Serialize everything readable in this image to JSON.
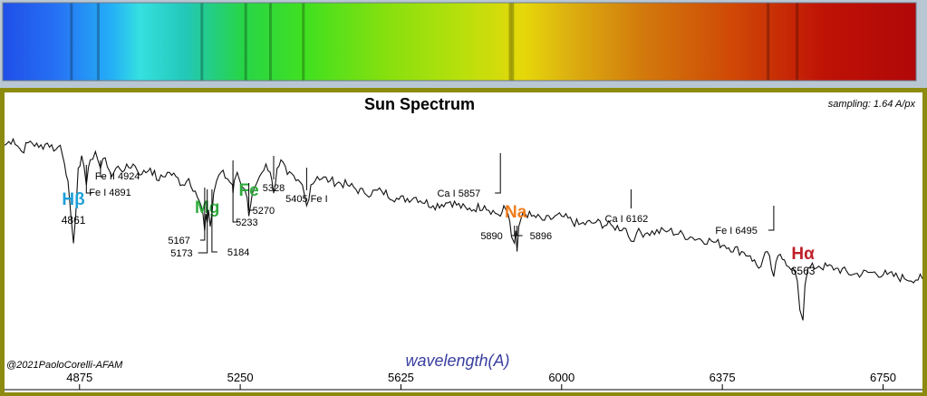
{
  "chart_data": {
    "type": "line",
    "title": "Sun Spectrum",
    "sampling_note": "sampling: 1.64 A/px",
    "xlabel": "wavelength(A)",
    "ylabel": "",
    "credit": "@2021PaoloCorelli-AFAM",
    "xlim": [
      4700,
      6842
    ],
    "ylim": [
      0,
      1
    ],
    "grid": false,
    "xticks": [
      4875,
      5250,
      5625,
      6000,
      6375,
      6750
    ],
    "xtick_labels": [
      "4875",
      "5250",
      "5625",
      "6000",
      "6375",
      "6750"
    ],
    "colors": {
      "h_lines": "#c0202a",
      "hbeta_label": "#1ea0d8",
      "metal_label": "#2eaa3c",
      "na_label": "#f07d1e",
      "axis_label": "#3a3fa0",
      "line": "#111111"
    },
    "series": [
      {
        "x": [
          4700,
          4720,
          4740,
          4760,
          4780,
          4800,
          4820,
          4830,
          4840,
          4848,
          4855,
          4861,
          4866,
          4872,
          4880,
          4891,
          4900,
          4912,
          4924,
          4935,
          4950,
          4965,
          4980,
          5000,
          5020,
          5040,
          5060,
          5080,
          5100,
          5115,
          5130,
          5145,
          5155,
          5163,
          5167,
          5170,
          5173,
          5176,
          5180,
          5184,
          5188,
          5195,
          5205,
          5220,
          5232,
          5233,
          5236,
          5243,
          5252,
          5260,
          5266,
          5270,
          5274,
          5282,
          5295,
          5310,
          5320,
          5328,
          5336,
          5345,
          5360,
          5380,
          5395,
          5405,
          5415,
          5430,
          5460,
          5500,
          5540,
          5580,
          5620,
          5660,
          5700,
          5740,
          5780,
          5820,
          5850,
          5857,
          5865,
          5875,
          5883,
          5890,
          5893,
          5896,
          5900,
          5910,
          5930,
          5960,
          6000,
          6040,
          6080,
          6120,
          6150,
          6162,
          6175,
          6200,
          6250,
          6300,
          6350,
          6380,
          6420,
          6440,
          6460,
          6480,
          6495,
          6505,
          6520,
          6540,
          6550,
          6556,
          6563,
          6568,
          6575,
          6600,
          6640,
          6680,
          6720,
          6760,
          6800,
          6842
        ],
        "y": [
          0.89,
          0.92,
          0.86,
          0.91,
          0.88,
          0.9,
          0.87,
          0.89,
          0.8,
          0.72,
          0.55,
          0.42,
          0.55,
          0.78,
          0.84,
          0.7,
          0.82,
          0.86,
          0.78,
          0.83,
          0.74,
          0.79,
          0.77,
          0.8,
          0.75,
          0.78,
          0.72,
          0.76,
          0.74,
          0.7,
          0.73,
          0.67,
          0.62,
          0.56,
          0.48,
          0.56,
          0.52,
          0.58,
          0.5,
          0.56,
          0.66,
          0.72,
          0.76,
          0.73,
          0.7,
          0.66,
          0.72,
          0.76,
          0.7,
          0.68,
          0.64,
          0.55,
          0.6,
          0.68,
          0.74,
          0.8,
          0.76,
          0.66,
          0.78,
          0.82,
          0.75,
          0.72,
          0.7,
          0.6,
          0.7,
          0.74,
          0.72,
          0.7,
          0.66,
          0.67,
          0.63,
          0.64,
          0.6,
          0.62,
          0.58,
          0.6,
          0.56,
          0.55,
          0.6,
          0.56,
          0.45,
          0.42,
          0.48,
          0.38,
          0.5,
          0.57,
          0.55,
          0.53,
          0.55,
          0.51,
          0.52,
          0.5,
          0.49,
          0.43,
          0.47,
          0.47,
          0.48,
          0.45,
          0.43,
          0.41,
          0.38,
          0.36,
          0.3,
          0.38,
          0.26,
          0.36,
          0.34,
          0.3,
          0.24,
          0.1,
          0.05,
          0.22,
          0.3,
          0.31,
          0.3,
          0.27,
          0.28,
          0.27,
          0.25,
          0.25
        ]
      }
    ],
    "annotations": [
      {
        "text": "Hβ",
        "role": "symbol",
        "x": 4861,
        "color_key": "hbeta_label"
      },
      {
        "text": "4861",
        "role": "value",
        "x": 4861
      },
      {
        "text": "Fe I 4891",
        "role": "line",
        "x": 4891
      },
      {
        "text": "Fe II 4924",
        "role": "line",
        "x": 4924
      },
      {
        "text": "Mg",
        "role": "symbol",
        "x": 5173,
        "color_key": "metal_label"
      },
      {
        "text": "5167",
        "role": "line",
        "x": 5167
      },
      {
        "text": "5173",
        "role": "line",
        "x": 5173
      },
      {
        "text": "5184",
        "role": "line",
        "x": 5184
      },
      {
        "text": "Fe",
        "role": "symbol",
        "x": 5270,
        "color_key": "metal_label"
      },
      {
        "text": "5233",
        "role": "line",
        "x": 5233
      },
      {
        "text": "5270",
        "role": "line",
        "x": 5270
      },
      {
        "text": "5328",
        "role": "line",
        "x": 5328
      },
      {
        "text": "5405  Fe I",
        "role": "line",
        "x": 5405
      },
      {
        "text": "Ca I 5857",
        "role": "line",
        "x": 5857
      },
      {
        "text": "Na",
        "role": "symbol",
        "x": 5893,
        "color_key": "na_label"
      },
      {
        "text": "5890",
        "role": "line",
        "x": 5890
      },
      {
        "text": "5896",
        "role": "line",
        "x": 5896
      },
      {
        "text": "Ca I 6162",
        "role": "line",
        "x": 6162
      },
      {
        "text": "Fe I 6495",
        "role": "line",
        "x": 6495
      },
      {
        "text": "Hα",
        "role": "symbol",
        "x": 6563,
        "color_key": "h_lines"
      },
      {
        "text": "6563",
        "role": "value",
        "x": 6563
      }
    ]
  }
}
